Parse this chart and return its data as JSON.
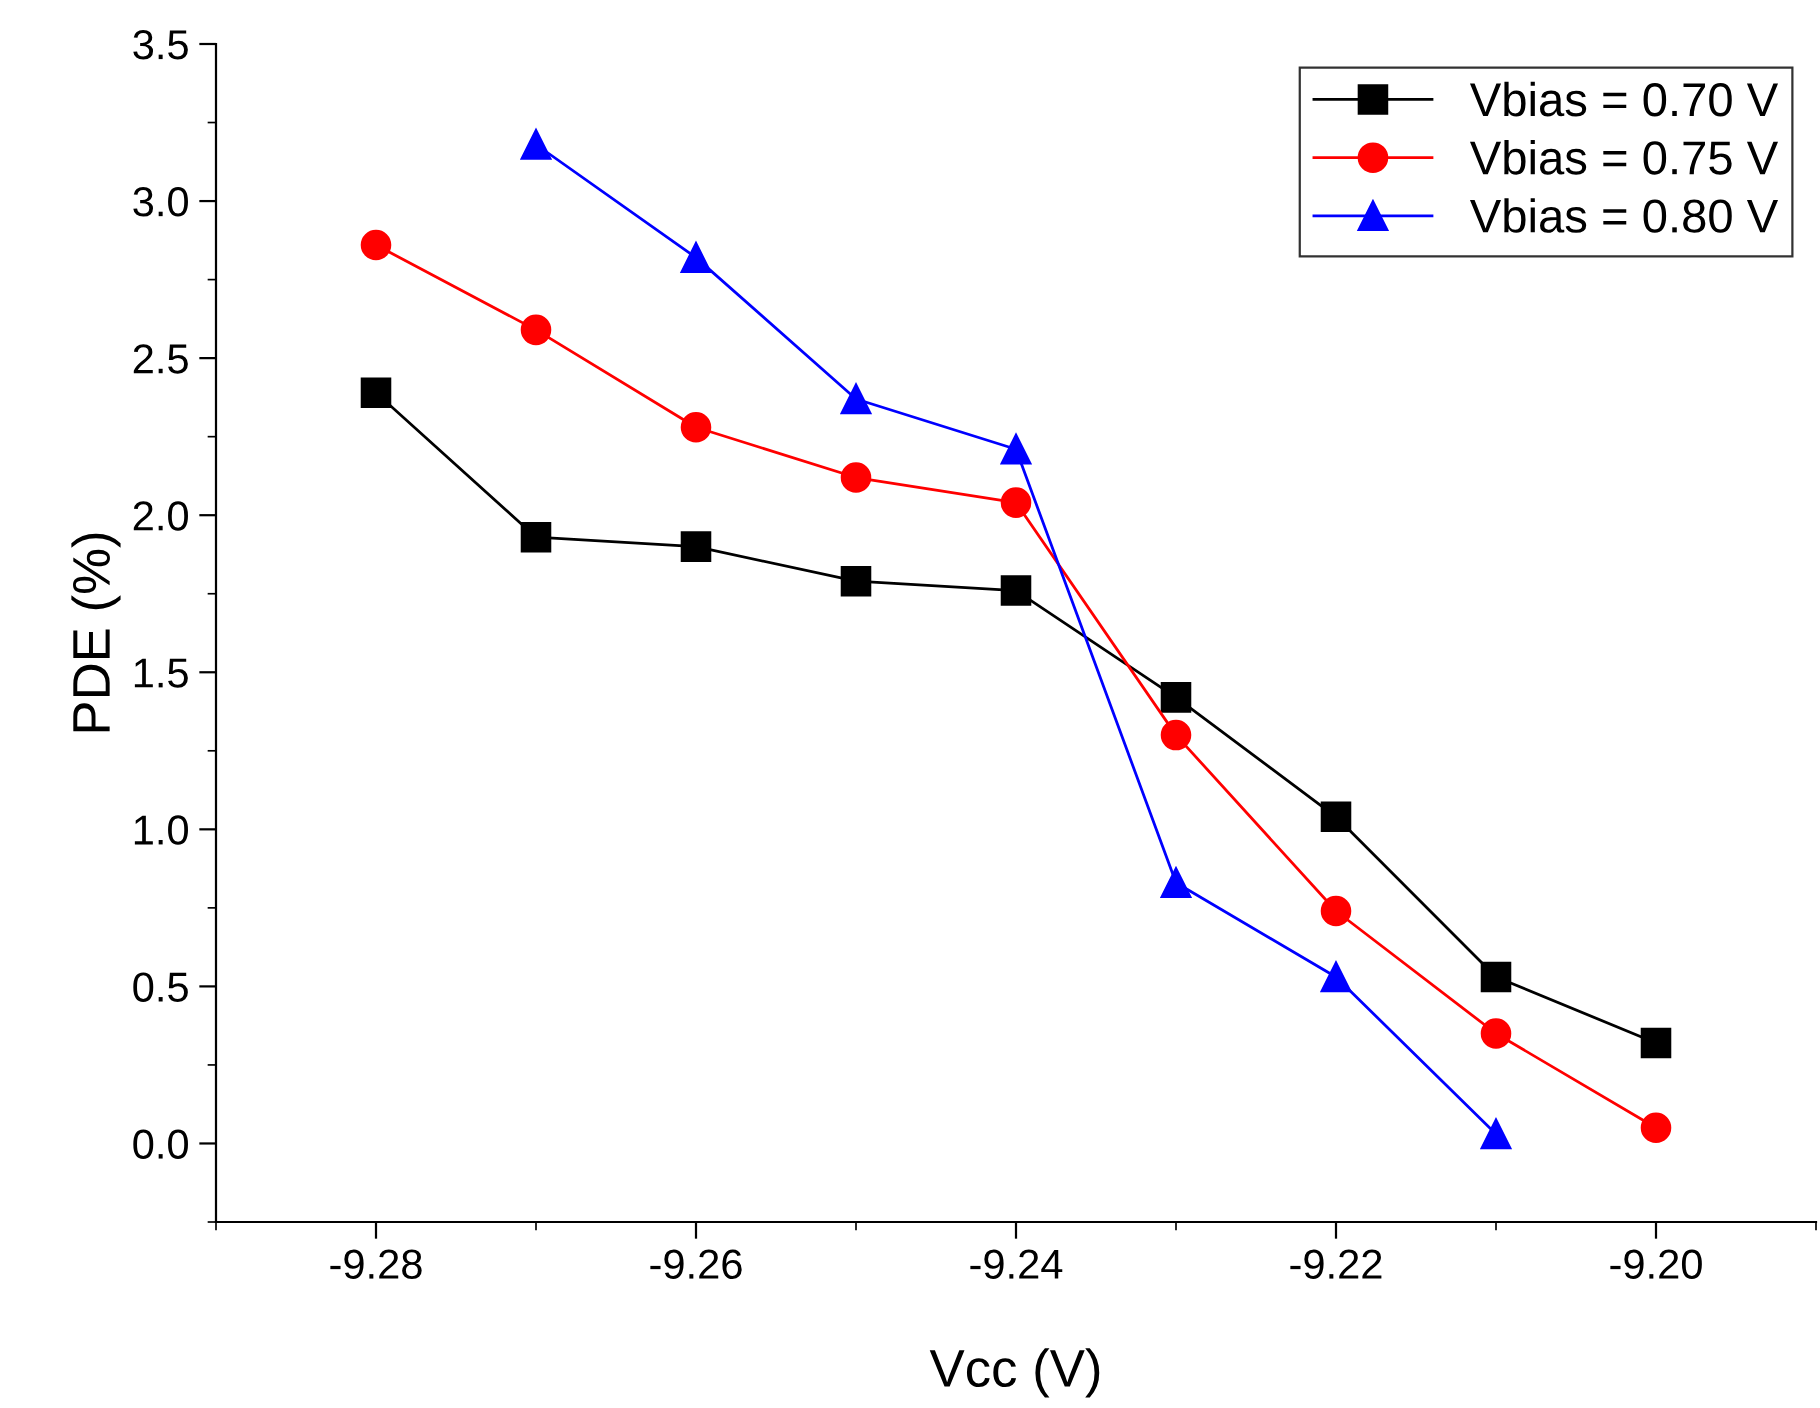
{
  "chart_data": {
    "type": "line",
    "xlabel": "Vcc (V)",
    "ylabel": "PDE (%)",
    "xlim": [
      -9.29,
      -9.19
    ],
    "xticks": [
      {
        "value": -9.28,
        "label": "-9.28"
      },
      {
        "value": -9.26,
        "label": "-9.26"
      },
      {
        "value": -9.24,
        "label": "-9.24"
      },
      {
        "value": -9.22,
        "label": "-9.22"
      },
      {
        "value": -9.2,
        "label": "-9.20"
      }
    ],
    "ylim": [
      -0.25,
      3.5
    ],
    "yticks": [
      {
        "value": 0,
        "label": "0.0"
      },
      {
        "value": 0.5,
        "label": "0.5"
      },
      {
        "value": 1,
        "label": "1.0"
      },
      {
        "value": 1.5,
        "label": "1.5"
      },
      {
        "value": 2,
        "label": "2.0"
      },
      {
        "value": 2.5,
        "label": "2.5"
      },
      {
        "value": 3,
        "label": "3.0"
      },
      {
        "value": 3.5,
        "label": "3.5"
      }
    ],
    "grid": false,
    "legend": "top right",
    "line_style": "solid",
    "series": [
      {
        "name": "Vbias = 0.70 V",
        "color": "#000000",
        "marker": "square",
        "x": [
          -9.28,
          -9.27,
          -9.26,
          -9.25,
          -9.24,
          -9.23,
          -9.22,
          -9.21,
          -9.2
        ],
        "values": [
          2.39,
          1.93,
          1.9,
          1.79,
          1.76,
          1.42,
          1.04,
          0.53,
          0.32
        ]
      },
      {
        "name": "Vbias = 0.75 V",
        "color": "#ff0000",
        "marker": "circle",
        "x": [
          -9.28,
          -9.27,
          -9.26,
          -9.25,
          -9.24,
          -9.23,
          -9.22,
          -9.21,
          -9.2
        ],
        "values": [
          2.86,
          2.59,
          2.28,
          2.12,
          2.04,
          1.3,
          0.74,
          0.35,
          0.05
        ]
      },
      {
        "name": "Vbias = 0.80 V",
        "color": "#0000ff",
        "marker": "triangle",
        "x": [
          -9.27,
          -9.26,
          -9.25,
          -9.24,
          -9.23,
          -9.22,
          -9.21
        ],
        "values": [
          3.18,
          2.82,
          2.37,
          2.21,
          0.83,
          0.53,
          0.03
        ]
      }
    ]
  }
}
